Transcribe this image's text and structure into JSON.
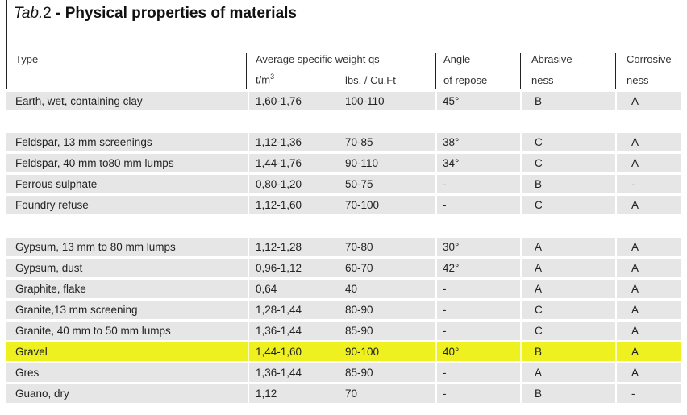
{
  "title": {
    "prefix": "Tab.",
    "number": "2",
    "dash": " - ",
    "text": "Physical properties of materials"
  },
  "headers": {
    "type": "Type",
    "avg_weight": "Average specific weight  qs",
    "angle": "Angle",
    "abrasive": "Abrasive -",
    "corrosive": "Corrosive -",
    "t_m3": "t/m",
    "t_m3_exp": "3",
    "lbs": "lbs.  / Cu.Ft",
    "of_repose": "of repose",
    "ness_a": "ness",
    "ness_c": "ness"
  },
  "rows": [
    {
      "type": "Earth, wet, containing clay",
      "t_m3": "1,60-1,76",
      "lbs": "100-110",
      "angle": "45°",
      "abrasive": "B",
      "corrosive": "A",
      "highlight": false
    },
    {
      "type": "Feldspar,  13 mm screenings",
      "t_m3": "1,12-1,36",
      "lbs": "70-85",
      "angle": "38°",
      "abrasive": "C",
      "corrosive": "A",
      "highlight": false
    },
    {
      "type": "Feldspar, 40 mm to80 mm lumps",
      "t_m3": "1,44-1,76",
      "lbs": "90-110",
      "angle": "34°",
      "abrasive": "C",
      "corrosive": "A",
      "highlight": false
    },
    {
      "type": "Ferrous sulphate",
      "t_m3": "0,80-1,20",
      "lbs": "50-75",
      "angle": "-",
      "abrasive": "B",
      "corrosive": "-",
      "highlight": false
    },
    {
      "type": "Foundry  refuse",
      "t_m3": "1,12-1,60",
      "lbs": "70-100",
      "angle": "-",
      "abrasive": "C",
      "corrosive": "A",
      "highlight": false
    },
    {
      "type": "Gypsum, 13 mm to 80 mm lumps",
      "t_m3": "1,12-1,28",
      "lbs": "70-80",
      "angle": "30°",
      "abrasive": "A",
      "corrosive": "A",
      "highlight": false
    },
    {
      "type": "Gypsum, dust",
      "t_m3": "0,96-1,12",
      "lbs": "60-70",
      "angle": "42°",
      "abrasive": "A",
      "corrosive": "A",
      "highlight": false
    },
    {
      "type": "Graphite, flake",
      "t_m3": "0,64",
      "lbs": "40",
      "angle": "-",
      "abrasive": "A",
      "corrosive": "A",
      "highlight": false
    },
    {
      "type": "Granite,13 mm screening",
      "t_m3": "1,28-1,44",
      "lbs": "80-90",
      "angle": "-",
      "abrasive": "C",
      "corrosive": "A",
      "highlight": false
    },
    {
      "type": "Granite, 40 mm to 50 mm lumps",
      "t_m3": "1,36-1,44",
      "lbs": "85-90",
      "angle": "-",
      "abrasive": "C",
      "corrosive": "A",
      "highlight": false
    },
    {
      "type": "Gravel",
      "t_m3": "1,44-1,60",
      "lbs": "90-100",
      "angle": "40°",
      "abrasive": "B",
      "corrosive": "A",
      "highlight": true
    },
    {
      "type": "Gres",
      "t_m3": "1,36-1,44",
      "lbs": "85-90",
      "angle": "-",
      "abrasive": "A",
      "corrosive": "A",
      "highlight": false
    },
    {
      "type": "Guano, dry",
      "t_m3": "1,12",
      "lbs": "70",
      "angle": "-",
      "abrasive": "B",
      "corrosive": "-",
      "highlight": false
    }
  ],
  "colors": {
    "row_gray": "#e6e6e6",
    "highlight": "#eef020"
  }
}
